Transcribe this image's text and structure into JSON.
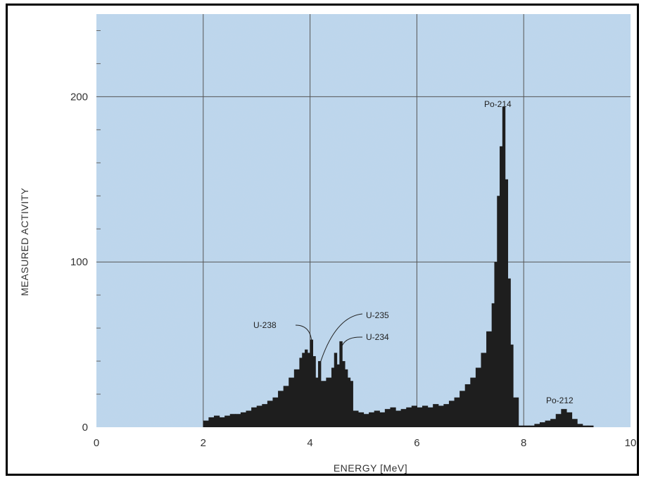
{
  "chart_data": {
    "type": "bar",
    "title": "",
    "xlabel": "ENERGY [MeV]",
    "ylabel": "MEASURED ACTIVITY",
    "xlim": [
      0,
      10
    ],
    "ylim": [
      0,
      250
    ],
    "x_ticks": [
      "0",
      "2",
      "4",
      "6",
      "8",
      "10"
    ],
    "y_ticks": [
      "0",
      "100",
      "200"
    ],
    "grid": true,
    "colors": {
      "plot_background": "#bcd6ec",
      "bars": "#1e1e1e",
      "grid": "#555555"
    },
    "annotations": [
      {
        "label": "U-238",
        "x": 4.0,
        "y": 53
      },
      {
        "label": "U-235",
        "x": 4.15,
        "y": 40
      },
      {
        "label": "U-234",
        "x": 4.55,
        "y": 52
      },
      {
        "label": "Po-214",
        "x": 7.6,
        "y": 194
      },
      {
        "label": "Po-212",
        "x": 8.7,
        "y": 11
      }
    ],
    "series": [
      {
        "x": [
          2.0,
          2.1,
          2.2,
          2.3,
          2.4,
          2.5,
          2.6,
          2.7,
          2.8,
          2.9,
          3.0,
          3.1,
          3.2,
          3.3,
          3.4,
          3.5,
          3.6,
          3.7,
          3.8,
          3.85,
          3.9,
          3.95,
          4.0,
          4.05,
          4.1,
          4.15,
          4.2,
          4.3,
          4.4,
          4.45,
          4.5,
          4.55,
          4.6,
          4.65,
          4.7,
          4.75,
          4.8,
          4.9,
          5.0,
          5.1,
          5.2,
          5.3,
          5.4,
          5.5,
          5.6,
          5.7,
          5.8,
          5.9,
          6.0,
          6.1,
          6.2,
          6.3,
          6.4,
          6.5,
          6.6,
          6.7,
          6.8,
          6.9,
          7.0,
          7.1,
          7.2,
          7.3,
          7.4,
          7.45,
          7.5,
          7.55,
          7.6,
          7.65,
          7.7,
          7.75,
          7.8,
          7.9,
          8.0,
          8.1,
          8.2,
          8.3,
          8.4,
          8.5,
          8.6,
          8.7,
          8.8,
          8.9,
          9.0,
          9.1,
          9.2,
          9.3
        ],
        "values": [
          4,
          6,
          7,
          6,
          7,
          8,
          8,
          9,
          10,
          12,
          13,
          14,
          16,
          18,
          22,
          25,
          30,
          35,
          42,
          45,
          47,
          45,
          53,
          43,
          30,
          40,
          28,
          30,
          36,
          45,
          38,
          52,
          40,
          35,
          30,
          28,
          10,
          9,
          8,
          9,
          10,
          9,
          11,
          12,
          10,
          11,
          12,
          13,
          12,
          13,
          12,
          14,
          13,
          14,
          16,
          18,
          22,
          26,
          30,
          36,
          45,
          58,
          75,
          100,
          140,
          170,
          194,
          150,
          90,
          50,
          18,
          1,
          1,
          1,
          2,
          3,
          4,
          5,
          8,
          11,
          9,
          5,
          2,
          1,
          1,
          0
        ]
      }
    ]
  }
}
